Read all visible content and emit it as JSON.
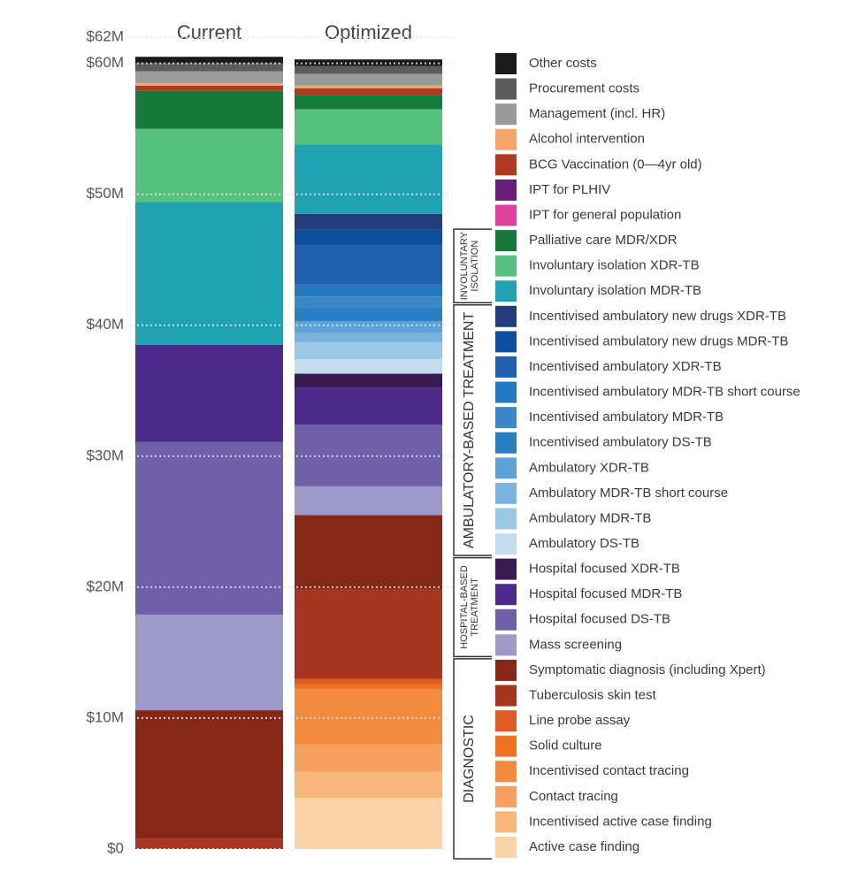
{
  "chart_data": {
    "type": "stacked_bar",
    "categories": [
      "Current",
      "Optimized"
    ],
    "ylim": [
      0,
      62
    ],
    "yticks": [
      {
        "value": 0,
        "label": "$0"
      },
      {
        "value": 10,
        "label": "$10M"
      },
      {
        "value": 20,
        "label": "$20M"
      },
      {
        "value": 30,
        "label": "$30M"
      },
      {
        "value": 40,
        "label": "$40M"
      },
      {
        "value": 50,
        "label": "$50M"
      },
      {
        "value": 60,
        "label": "$60M"
      },
      {
        "value": 62,
        "label": "$62M"
      }
    ],
    "grid": true,
    "series": [
      {
        "name": "Other costs",
        "color": "#1a1a1a",
        "values": [
          0.5,
          0.5
        ]
      },
      {
        "name": "Procurement costs",
        "color": "#5c5c5c",
        "values": [
          0.6,
          0.6
        ]
      },
      {
        "name": "Management (incl. HR)",
        "color": "#9a9a9a",
        "values": [
          0.9,
          0.9
        ]
      },
      {
        "name": "Alcohol intervention",
        "color": "#f5a46a",
        "values": [
          0.2,
          0.2
        ]
      },
      {
        "name": "BCG Vaccination (0—4yr old)",
        "color": "#b03a22",
        "values": [
          0.4,
          0.5
        ]
      },
      {
        "name": "IPT for PLHIV",
        "color": "#6a1f7a",
        "values": [
          0,
          0
        ]
      },
      {
        "name": "IPT for general population",
        "color": "#e040a0",
        "values": [
          0,
          0
        ]
      },
      {
        "name": "Palliative care MDR/XDR",
        "color": "#167a3a",
        "values": [
          2.9,
          1.1
        ]
      },
      {
        "name": "Involuntary isolation XDR-TB",
        "color": "#56c07e",
        "values": [
          5.6,
          2.7
        ]
      },
      {
        "name": "Involuntary isolation MDR-TB",
        "color": "#1fa3b3",
        "values": [
          10.9,
          5.3
        ]
      },
      {
        "name": "Incentivised ambulatory new drugs XDR-TB",
        "color": "#243c7a",
        "values": [
          0,
          1.2
        ]
      },
      {
        "name": "Incentivised ambulatory new drugs MDR-TB",
        "color": "#0d4f9e",
        "values": [
          0,
          1.2
        ]
      },
      {
        "name": "Incentivised ambulatory XDR-TB",
        "color": "#2060b0",
        "values": [
          0,
          3.0
        ]
      },
      {
        "name": "Incentivised ambulatory MDR-TB short course",
        "color": "#2478c0",
        "values": [
          0,
          0.9
        ]
      },
      {
        "name": "Incentivised ambulatory MDR-TB",
        "color": "#3a88c8",
        "values": [
          0,
          0.9
        ]
      },
      {
        "name": "Incentivised ambulatory DS-TB",
        "color": "#2a7fc2",
        "values": [
          0,
          1.0
        ]
      },
      {
        "name": "Ambulatory XDR-TB",
        "color": "#5ea3d6",
        "values": [
          0,
          0.9
        ]
      },
      {
        "name": "Ambulatory MDR-TB short course",
        "color": "#7ab4de",
        "values": [
          0,
          0.7
        ]
      },
      {
        "name": "Ambulatory MDR-TB",
        "color": "#9cc8e8",
        "values": [
          0,
          1.3
        ]
      },
      {
        "name": "Ambulatory DS-TB",
        "color": "#c3dcf0",
        "values": [
          0,
          1.1
        ]
      },
      {
        "name": "Hospital focused XDR-TB",
        "color": "#3a1a52",
        "values": [
          0,
          1.1
        ]
      },
      {
        "name": "Hospital focused MDR-TB",
        "color": "#4e2a8e",
        "values": [
          7.4,
          2.8
        ]
      },
      {
        "name": "Hospital focused DS-TB",
        "color": "#7060aa",
        "values": [
          13.2,
          4.7
        ]
      },
      {
        "name": "Mass screening",
        "color": "#9e98c8",
        "values": [
          7.3,
          2.2
        ]
      },
      {
        "name": "Symptomatic diagnosis (including Xpert)",
        "color": "#852818",
        "values": [
          9.8,
          5.7
        ]
      },
      {
        "name": "Tuberculosis skin test",
        "color": "#a83520",
        "values": [
          0.8,
          6.8
        ]
      },
      {
        "name": "Line probe assay",
        "color": "#e05a24",
        "values": [
          0,
          0.4
        ]
      },
      {
        "name": "Solid culture",
        "color": "#ef7220",
        "values": [
          0,
          0.4
        ]
      },
      {
        "name": "Incentivised contact tracing",
        "color": "#f38a3c",
        "values": [
          0,
          4.2
        ]
      },
      {
        "name": "Contact tracing",
        "color": "#f5a060",
        "values": [
          0,
          2.1
        ]
      },
      {
        "name": "Incentivised active case finding",
        "color": "#f9b87a",
        "values": [
          0,
          2.0
        ]
      },
      {
        "name": "Active case finding",
        "color": "#fcd4a8",
        "values": [
          0,
          3.9
        ]
      }
    ],
    "groups": [
      {
        "lines": [
          "INVOLUNTARY",
          "ISOLATION"
        ]
      },
      {
        "lines": [
          "AMBULATORY-BASED TREATMENT"
        ]
      },
      {
        "lines": [
          "HOSPITAL-BASED",
          "TREATMENT"
        ]
      },
      {
        "lines": [
          "DIAGNOSTIC"
        ]
      }
    ]
  }
}
